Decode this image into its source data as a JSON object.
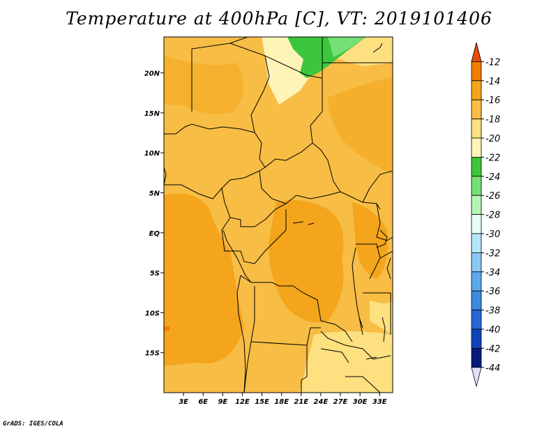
{
  "title": "Temperature at 400hPa [C], VT: 2019101406",
  "footer": "GrADS: IGES/COLA",
  "map": {
    "lon_range": [
      0,
      35
    ],
    "lat_range": [
      -20,
      24.5
    ],
    "y_ticks": [
      "20N",
      "15N",
      "10N",
      "5N",
      "EQ",
      "5S",
      "10S",
      "15S"
    ],
    "y_tick_values": [
      20,
      15,
      10,
      5,
      0,
      -5,
      -10,
      -15
    ],
    "x_ticks": [
      "3E",
      "6E",
      "9E",
      "12E",
      "15E",
      "18E",
      "21E",
      "24E",
      "27E",
      "30E",
      "33E"
    ],
    "x_tick_values": [
      3,
      6,
      9,
      12,
      15,
      18,
      21,
      24,
      27,
      30,
      33
    ]
  },
  "colorbar": {
    "labels": [
      "-12",
      "-14",
      "-16",
      "-18",
      "-20",
      "-22",
      "-24",
      "-26",
      "-28",
      "-30",
      "-32",
      "-34",
      "-36",
      "-38",
      "-40",
      "-42",
      "-44"
    ],
    "colors": [
      "#e64a0a",
      "#f07d00",
      "#f4a51c",
      "#f7bd45",
      "#fde07f",
      "#fff4b8",
      "#3cc63c",
      "#75e075",
      "#b4f5b4",
      "#e6fff9",
      "#b4e6fa",
      "#8cc8f5",
      "#5ba9ea",
      "#3a8ae0",
      "#2367d4",
      "#0d44b8",
      "#061a7a",
      "#e0e0f8"
    ]
  }
}
